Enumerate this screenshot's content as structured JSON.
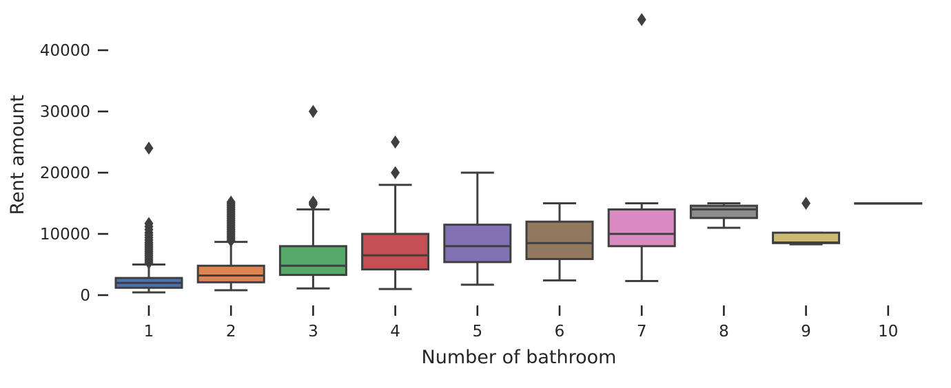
{
  "chart_data": {
    "type": "box",
    "xlabel": "Number of bathroom",
    "ylabel": "Rent amount",
    "categories": [
      "1",
      "2",
      "3",
      "4",
      "5",
      "6",
      "7",
      "8",
      "9",
      "10"
    ],
    "yticks": [
      0,
      10000,
      20000,
      30000,
      40000
    ],
    "ytick_labels": [
      "0",
      "10000",
      "20000",
      "30000",
      "40000"
    ],
    "ylim": [
      -1500,
      47000
    ],
    "grid": false,
    "boxes": [
      {
        "category": "1",
        "color": "#4c72b0",
        "whisker_low": 450,
        "q1": 1200,
        "median": 2000,
        "q3": 2800,
        "whisker_high": 5000,
        "outliers": [
          5300,
          5600,
          5900,
          6200,
          6500,
          6800,
          7100,
          7400,
          7700,
          8000,
          8300,
          8600,
          9000,
          9400,
          9800,
          10200,
          10700,
          11200,
          11700,
          24000
        ]
      },
      {
        "category": "2",
        "color": "#dd8452",
        "whisker_low": 800,
        "q1": 2100,
        "median": 3200,
        "q3": 4800,
        "whisker_high": 8700,
        "outliers": [
          8900,
          9200,
          9500,
          9800,
          10100,
          10400,
          10700,
          11000,
          11300,
          11600,
          11900,
          12200,
          12500,
          12800,
          13100,
          13400,
          13700,
          14000,
          14300,
          14600,
          14900,
          15200
        ]
      },
      {
        "category": "3",
        "color": "#55a868",
        "whisker_low": 1100,
        "q1": 3300,
        "median": 4800,
        "q3": 8000,
        "whisker_high": 14000,
        "outliers": [
          14800,
          15000,
          15200,
          30000
        ]
      },
      {
        "category": "4",
        "color": "#c44e52",
        "whisker_low": 1000,
        "q1": 4200,
        "median": 6500,
        "q3": 10000,
        "whisker_high": 18000,
        "outliers": [
          20000,
          25000
        ]
      },
      {
        "category": "5",
        "color": "#8172b3",
        "whisker_low": 1700,
        "q1": 5400,
        "median": 8000,
        "q3": 11500,
        "whisker_high": 20000,
        "outliers": []
      },
      {
        "category": "6",
        "color": "#937860",
        "whisker_low": 2400,
        "q1": 5900,
        "median": 8500,
        "q3": 12000,
        "whisker_high": 15000,
        "outliers": []
      },
      {
        "category": "7",
        "color": "#da8bc3",
        "whisker_low": 2300,
        "q1": 8000,
        "median": 10000,
        "q3": 14000,
        "whisker_high": 15000,
        "outliers": [
          45000
        ]
      },
      {
        "category": "8",
        "color": "#8c8c8c",
        "whisker_low": 11000,
        "q1": 12600,
        "median": 14000,
        "q3": 14600,
        "whisker_high": 15000,
        "outliers": []
      },
      {
        "category": "9",
        "color": "#ccb974",
        "whisker_low": 8300,
        "q1": 8500,
        "median": 8600,
        "q3": 10200,
        "whisker_high": 10200,
        "outliers": [
          15000
        ]
      },
      {
        "category": "10",
        "color": "#64b5cd",
        "whisker_low": 15000,
        "q1": 15000,
        "median": 15000,
        "q3": 15000,
        "whisker_high": 15000,
        "outliers": []
      }
    ]
  }
}
